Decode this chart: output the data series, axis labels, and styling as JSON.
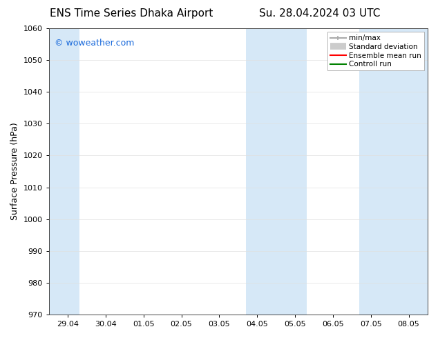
{
  "title_left": "ENS Time Series Dhaka Airport",
  "title_right": "Su. 28.04.2024 03 UTC",
  "ylabel": "Surface Pressure (hPa)",
  "ylim": [
    970,
    1060
  ],
  "yticks": [
    970,
    980,
    990,
    1000,
    1010,
    1020,
    1030,
    1040,
    1050,
    1060
  ],
  "x_labels": [
    "29.04",
    "30.04",
    "01.05",
    "02.05",
    "03.05",
    "04.05",
    "05.05",
    "06.05",
    "07.05",
    "08.05"
  ],
  "x_positions": [
    0,
    1,
    2,
    3,
    4,
    5,
    6,
    7,
    8,
    9
  ],
  "xlim": [
    -0.5,
    9.5
  ],
  "shaded_bands": [
    {
      "x_start": -0.5,
      "x_end": 0.3
    },
    {
      "x_start": 4.7,
      "x_end": 6.3
    },
    {
      "x_start": 7.7,
      "x_end": 9.5
    }
  ],
  "shade_color": "#d6e8f7",
  "background_color": "#ffffff",
  "plot_bg_color": "#ffffff",
  "watermark_text": "© woweather.com",
  "watermark_color": "#1a6adb",
  "legend_items": [
    {
      "label": "min/max",
      "color": "#aaaaaa",
      "lw": 1.5,
      "style": "line_with_caps"
    },
    {
      "label": "Standard deviation",
      "color": "#cccccc",
      "lw": 7,
      "style": "thick"
    },
    {
      "label": "Ensemble mean run",
      "color": "#ff0000",
      "lw": 1.5,
      "style": "line"
    },
    {
      "label": "Controll run",
      "color": "#008000",
      "lw": 1.5,
      "style": "line"
    }
  ],
  "grid_color": "#e0e0e0",
  "title_fontsize": 11,
  "tick_fontsize": 8,
  "label_fontsize": 9,
  "watermark_fontsize": 9
}
